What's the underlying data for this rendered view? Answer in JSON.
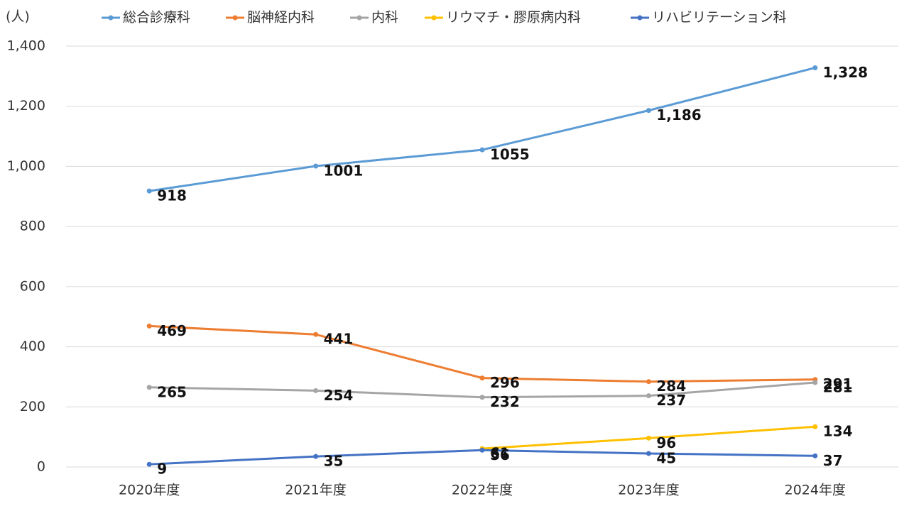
{
  "chart_data": {
    "type": "line",
    "y_label": "(人)",
    "categories": [
      "2020年度",
      "2021年度",
      "2022年度",
      "2023年度",
      "2024年度"
    ],
    "series": [
      {
        "name": "総合診療科",
        "color": "#5b9bd5",
        "values": [
          918,
          1001,
          1055,
          1186,
          1328
        ],
        "value_labels": [
          "918",
          "1001",
          "1055",
          "1,186",
          "1,328"
        ]
      },
      {
        "name": "脳神経内科",
        "color": "#ed7d31",
        "values": [
          469,
          441,
          296,
          284,
          291
        ]
      },
      {
        "name": "内科",
        "color": "#a5a5a5",
        "values": [
          265,
          254,
          232,
          237,
          281
        ]
      },
      {
        "name": "リウマチ・膠原病内科",
        "color": "#ffc000",
        "values": [
          null,
          null,
          61,
          96,
          134
        ]
      },
      {
        "name": "リハビリテーション科",
        "color": "#4472c4",
        "values": [
          9,
          35,
          56,
          45,
          37
        ]
      }
    ],
    "ylim": [
      0,
      1400
    ],
    "yticks": [
      0,
      200,
      400,
      600,
      800,
      {
        "value": 1000,
        "label": "1,000"
      },
      {
        "value": 1200,
        "label": "1,200"
      },
      {
        "value": 1400,
        "label": "1,400"
      }
    ],
    "grid": true,
    "legend": "top"
  }
}
